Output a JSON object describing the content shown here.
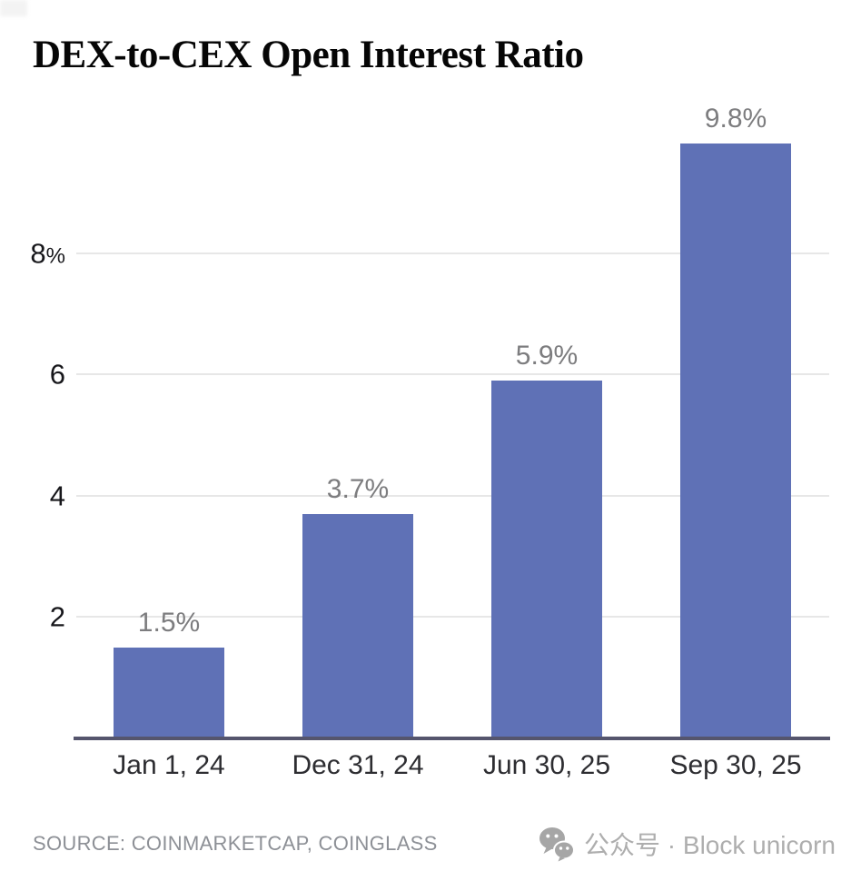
{
  "chart_data": {
    "type": "bar",
    "title": "DEX-to-CEX Open Interest Ratio",
    "categories": [
      "Jan 1, 24",
      "Dec 31, 24",
      "Jun 30, 25",
      "Sep 30, 25"
    ],
    "values": [
      1.5,
      3.7,
      5.9,
      9.8
    ],
    "point_labels": [
      "1.5%",
      "3.7%",
      "5.9%",
      "9.8%"
    ],
    "unit": "%",
    "ylim": [
      0,
      10.4
    ],
    "yticks": [
      {
        "value": 8,
        "num": "8",
        "suffix": "%"
      },
      {
        "value": 6,
        "num": "6",
        "suffix": ""
      },
      {
        "value": 4,
        "num": "4",
        "suffix": ""
      },
      {
        "value": 2,
        "num": "2",
        "suffix": ""
      }
    ],
    "grid": "horizontal",
    "legend": "none",
    "bar_color": "#5f71b6",
    "accent_colors": {
      "bar": "#5f71b6",
      "axis_line": "#55556d",
      "gridline": "#e7e7e7",
      "value_label": "#7d7d7f"
    }
  },
  "footer": {
    "source": "SOURCE: COINMARKETCAP, COINGLASS",
    "watermark": {
      "icon": "wechat-icon",
      "text": "公众号 · Block unicorn"
    }
  }
}
